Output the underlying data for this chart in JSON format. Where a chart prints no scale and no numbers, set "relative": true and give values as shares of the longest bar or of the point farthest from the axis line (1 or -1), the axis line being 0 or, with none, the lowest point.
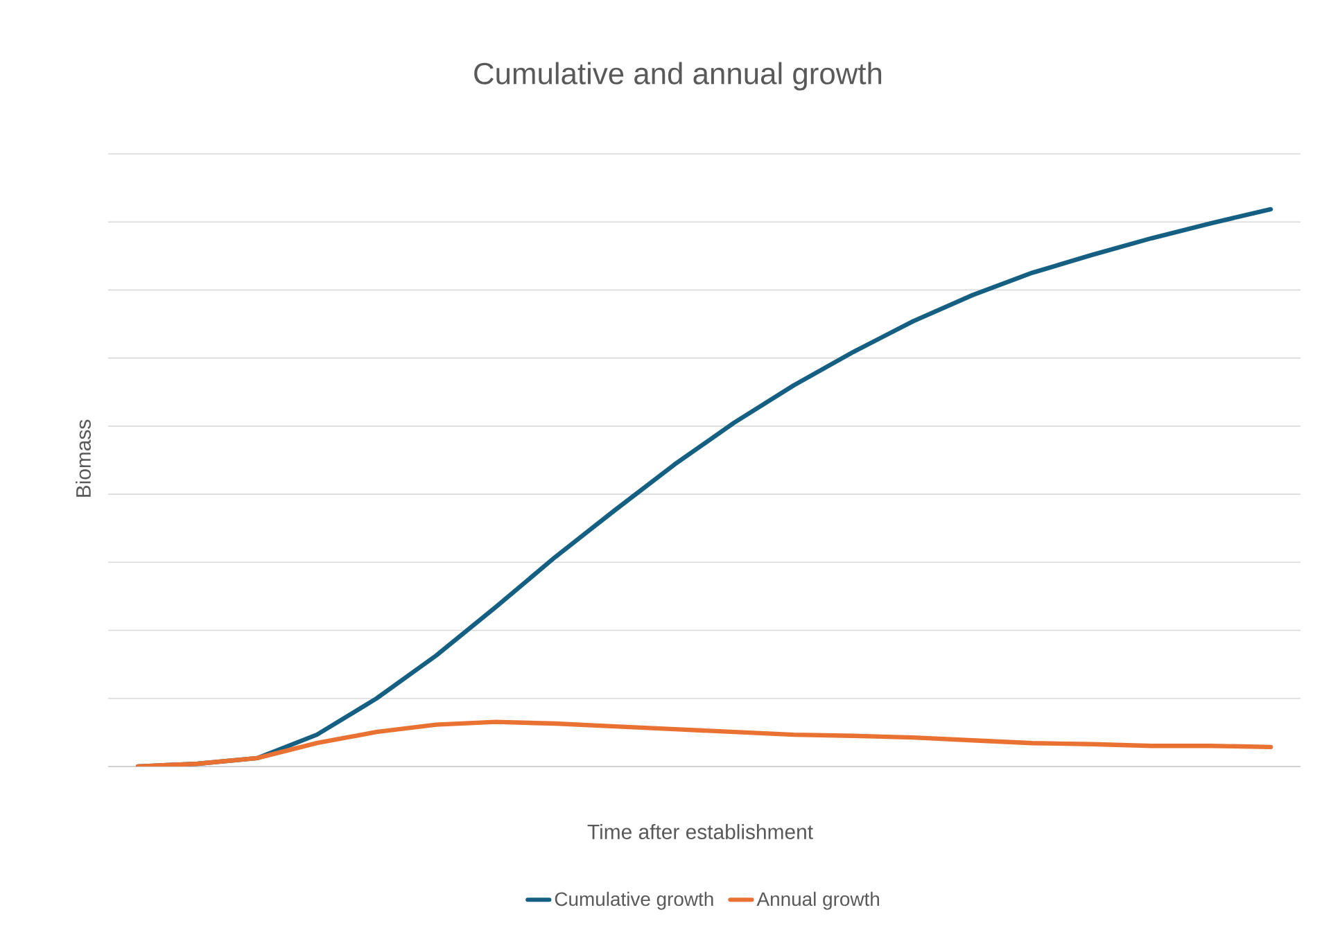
{
  "chart_data": {
    "type": "line",
    "title": "Cumulative and annual growth",
    "xlabel": "Time after establishment",
    "ylabel": "Biomass",
    "relative": true,
    "grid": "y",
    "legend": "bottom",
    "categories": [
      null,
      null,
      null,
      null,
      null,
      null,
      null,
      null,
      null,
      null,
      null,
      null,
      null,
      null,
      null,
      null,
      null,
      null,
      null,
      null
    ],
    "series": [
      {
        "name": "Cumulative growth",
        "color": "#156082",
        "values": [
          0,
          0.005,
          0.015,
          0.057,
          0.122,
          0.199,
          0.286,
          0.376,
          0.46,
          0.542,
          0.617,
          0.684,
          0.744,
          0.799,
          0.846,
          0.886,
          0.918,
          0.948,
          0.975,
          1
        ]
      },
      {
        "name": "Annual growth",
        "color": "#e97132",
        "values": [
          0,
          0.005,
          0.015,
          0.042,
          0.062,
          0.075,
          0.08,
          0.077,
          0.072,
          0.067,
          0.062,
          0.057,
          0.055,
          0.052,
          0.047,
          0.042,
          0.04,
          0.037,
          0.037,
          0.035
        ]
      }
    ]
  }
}
